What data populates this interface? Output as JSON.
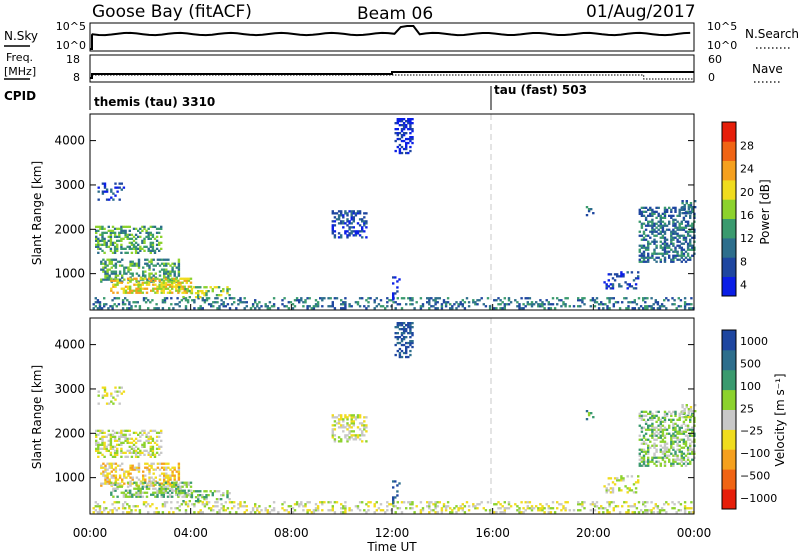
{
  "header": {
    "station": "Goose Bay (fitACF)",
    "beam": "Beam 06",
    "date": "01/Aug/2017"
  },
  "status_panels": {
    "nsky": {
      "left_label": "N.Sky",
      "left_ticks": [
        "10^5",
        "10^0"
      ],
      "right_label": "N.Search",
      "right_ticks": [
        "10^5",
        "10^0"
      ]
    },
    "freq": {
      "left_label_line1": "Freq.",
      "left_label_line2": "[MHz]",
      "left_ticks": [
        "18",
        "8"
      ],
      "right_label": "Nave",
      "right_ticks": [
        "60",
        "0"
      ]
    },
    "cpid": {
      "label": "CPID",
      "segments": [
        {
          "name": "themis (tau) 3310",
          "start_hour": 0
        },
        {
          "name": "tau (fast) 503",
          "start_hour": 16
        }
      ]
    }
  },
  "colors": {
    "power": [
      "#0a1ee6",
      "#1e46a0",
      "#2d6e8c",
      "#3a9a6e",
      "#8cd22d",
      "#f0dc1e",
      "#f5a01e",
      "#f06414",
      "#e61e0a"
    ],
    "velocity": [
      "#e61e0a",
      "#f06414",
      "#f5a01e",
      "#f0dc1e",
      "#c8c8c8",
      "#8cd22d",
      "#3a9a6e",
      "#2d6e8c",
      "#1e46a0"
    ]
  },
  "chart_data": [
    {
      "type": "heatmap",
      "name": "power",
      "ylabel": "Slant Range [km]",
      "ylim": [
        180,
        4600
      ],
      "yticks": [
        "1000",
        "2000",
        "3000",
        "4000"
      ],
      "xlim": [
        0,
        24
      ],
      "colorbar_label": "Power [dB]",
      "colorbar_ticks": [
        "4",
        "8",
        "12",
        "16",
        "20",
        "24",
        "28"
      ],
      "colorbar_range": [
        0,
        30
      ]
    },
    {
      "type": "heatmap",
      "name": "velocity",
      "ylabel": "Slant Range [km]",
      "ylim": [
        180,
        4600
      ],
      "yticks": [
        "1000",
        "2000",
        "3000",
        "4000"
      ],
      "xlim": [
        0,
        24
      ],
      "xlabel": "Time UT",
      "xticks": [
        "00:00",
        "04:00",
        "08:00",
        "12:00",
        "16:00",
        "20:00",
        "00:00"
      ],
      "colorbar_label": "Velocity [m s⁻¹]",
      "colorbar_ticks": [
        "1000",
        "500",
        "100",
        "25",
        "−25",
        "−100",
        "−500",
        "−1000"
      ]
    }
  ]
}
